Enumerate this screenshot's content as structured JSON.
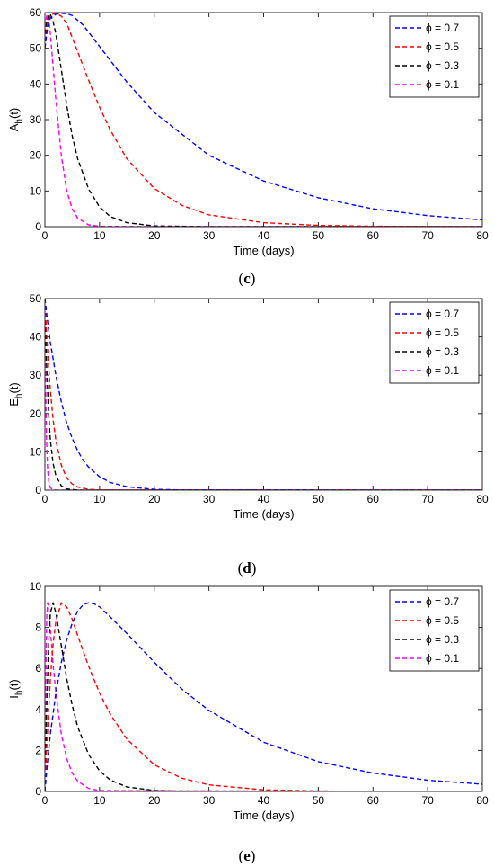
{
  "chart_data": [
    {
      "panel": "(c)",
      "panel_letter": "c",
      "type": "line",
      "xlabel": "Time (days)",
      "ylabel_base": "A",
      "ylabel_sub": "h",
      "ylabel_tail": "(t)",
      "xlim": [
        0,
        80
      ],
      "ylim": [
        0,
        60
      ],
      "xticks": [
        0,
        10,
        20,
        30,
        40,
        50,
        60,
        70,
        80
      ],
      "yticks": [
        0,
        10,
        20,
        30,
        40,
        50,
        60
      ],
      "legend_position": "top-right",
      "series": [
        {
          "name": "ϕ = 0.7",
          "color": "#0000ff",
          "x": [
            0,
            0.5,
            1,
            2,
            3,
            4,
            5,
            7,
            10,
            15,
            20,
            30,
            40,
            50,
            60,
            70,
            80
          ],
          "y": [
            50,
            56,
            58.5,
            59.5,
            59.8,
            59.7,
            59.2,
            56.5,
            50.5,
            40.5,
            32,
            20,
            12.8,
            8.1,
            5,
            3.1,
            1.9
          ]
        },
        {
          "name": "ϕ = 0.5",
          "color": "#ff0000",
          "x": [
            0,
            0.5,
            1,
            2,
            3,
            4,
            6,
            8,
            10,
            12,
            15,
            20,
            25,
            30,
            40,
            50,
            60,
            80
          ],
          "y": [
            50,
            57.5,
            59.3,
            59.8,
            59,
            57,
            49,
            41,
            33.5,
            27,
            19,
            10.7,
            6,
            3.3,
            1.1,
            0.35,
            0.1,
            0
          ]
        },
        {
          "name": "ϕ = 0.3",
          "color": "#000000",
          "x": [
            0,
            0.3,
            0.7,
            1,
            1.5,
            2,
            3,
            4,
            5,
            6,
            8,
            10,
            12,
            15,
            20,
            30,
            80
          ],
          "y": [
            50,
            57,
            59.5,
            59.5,
            57.5,
            54,
            44,
            34,
            25.5,
            19,
            10.5,
            5.5,
            2.8,
            1.1,
            0.2,
            0,
            0
          ]
        },
        {
          "name": "ϕ = 0.1",
          "color": "#ff00ff",
          "x": [
            0,
            0.2,
            0.4,
            0.7,
            1,
            1.5,
            2,
            3,
            4,
            5,
            6,
            8,
            10,
            20,
            80
          ],
          "y": [
            50,
            58,
            59.5,
            58,
            54,
            45,
            35.5,
            20,
            10,
            5,
            2.4,
            0.5,
            0.1,
            0,
            0
          ]
        }
      ]
    },
    {
      "panel": "(d)",
      "panel_letter": "d",
      "type": "line",
      "xlabel": "Time (days)",
      "ylabel_base": "E",
      "ylabel_sub": "h",
      "ylabel_tail": "(t)",
      "xlim": [
        0,
        80
      ],
      "ylim": [
        0,
        50
      ],
      "xticks": [
        0,
        10,
        20,
        30,
        40,
        50,
        60,
        70,
        80
      ],
      "yticks": [
        0,
        10,
        20,
        30,
        40,
        50
      ],
      "legend_position": "top-right",
      "series": [
        {
          "name": "ϕ = 0.7",
          "color": "#0000ff",
          "x": [
            0,
            0.5,
            1,
            2,
            3,
            4,
            5,
            6,
            7,
            8,
            10,
            12,
            15,
            20,
            25,
            80
          ],
          "y": [
            50,
            44,
            38.5,
            30,
            23,
            17.5,
            13.5,
            10.3,
            7.8,
            6,
            3.5,
            2,
            0.9,
            0.2,
            0.05,
            0
          ]
        },
        {
          "name": "ϕ = 0.5",
          "color": "#ff0000",
          "x": [
            0,
            0.3,
            0.6,
            1,
            1.5,
            2,
            3,
            4,
            5,
            6,
            8,
            10,
            80
          ],
          "y": [
            50,
            41,
            34,
            26,
            18.5,
            13,
            6.5,
            3.2,
            1.6,
            0.8,
            0.2,
            0.05,
            0
          ]
        },
        {
          "name": "ϕ = 0.3",
          "color": "#000000",
          "x": [
            0,
            0.2,
            0.4,
            0.7,
            1,
            1.5,
            2,
            3,
            4,
            6,
            80
          ],
          "y": [
            50,
            38,
            29,
            19.5,
            13,
            7,
            3.8,
            1.1,
            0.3,
            0.02,
            0
          ]
        },
        {
          "name": "ϕ = 0.1",
          "color": "#ff00ff",
          "x": [
            0,
            0.1,
            0.2,
            0.3,
            0.5,
            0.7,
            1,
            1.5,
            2,
            3,
            80
          ],
          "y": [
            50,
            32,
            20.5,
            13,
            5.5,
            2.3,
            0.6,
            0.1,
            0.02,
            0,
            0
          ]
        }
      ]
    },
    {
      "panel": "(e)",
      "panel_letter": "e",
      "type": "line",
      "xlabel": "Time (days)",
      "ylabel_base": "I",
      "ylabel_sub": "h",
      "ylabel_tail": "(t)",
      "xlim": [
        0,
        80
      ],
      "ylim": [
        0,
        10
      ],
      "xticks": [
        0,
        10,
        20,
        30,
        40,
        50,
        60,
        70,
        80
      ],
      "yticks": [
        0,
        2,
        4,
        6,
        8,
        10
      ],
      "legend_position": "top-right",
      "series": [
        {
          "name": "ϕ = 0.7",
          "color": "#0000ff",
          "x": [
            0,
            0.5,
            1,
            2,
            3,
            4,
            5,
            6,
            7,
            8,
            9,
            10,
            12,
            15,
            20,
            25,
            30,
            40,
            50,
            60,
            70,
            80
          ],
          "y": [
            0,
            1.5,
            2.8,
            4.8,
            6.3,
            7.4,
            8.2,
            8.8,
            9.1,
            9.2,
            9.15,
            9.0,
            8.5,
            7.7,
            6.3,
            5.0,
            3.95,
            2.4,
            1.45,
            0.9,
            0.55,
            0.35
          ]
        },
        {
          "name": "ϕ = 0.5",
          "color": "#ff0000",
          "x": [
            0,
            0.3,
            0.7,
            1,
            1.5,
            2,
            3,
            4,
            5,
            6,
            8,
            10,
            12,
            15,
            20,
            25,
            30,
            40,
            50,
            60,
            80
          ],
          "y": [
            0,
            2,
            4,
            5.5,
            7.2,
            8.3,
            9.2,
            9.0,
            8.4,
            7.6,
            6.1,
            4.8,
            3.75,
            2.55,
            1.3,
            0.65,
            0.32,
            0.08,
            0.02,
            0,
            0
          ]
        },
        {
          "name": "ϕ = 0.3",
          "color": "#000000",
          "x": [
            0,
            0.2,
            0.4,
            0.7,
            1,
            1.5,
            2,
            3,
            4,
            5,
            6,
            8,
            10,
            12,
            15,
            20,
            25,
            80
          ],
          "y": [
            0,
            2.5,
            4.8,
            7.3,
            8.7,
            9.2,
            8.7,
            7.1,
            5.5,
            4.2,
            3.15,
            1.8,
            1.0,
            0.55,
            0.22,
            0.05,
            0.01,
            0
          ]
        },
        {
          "name": "ϕ = 0.1",
          "color": "#ff00ff",
          "x": [
            0,
            0.1,
            0.2,
            0.35,
            0.5,
            0.7,
            1,
            1.5,
            2,
            3,
            4,
            5,
            6,
            8,
            10,
            80
          ],
          "y": [
            0,
            3.5,
            6.2,
            8.6,
            9.2,
            8.9,
            7.9,
            6.2,
            4.8,
            2.8,
            1.6,
            0.9,
            0.5,
            0.15,
            0.04,
            0
          ]
        }
      ]
    }
  ]
}
